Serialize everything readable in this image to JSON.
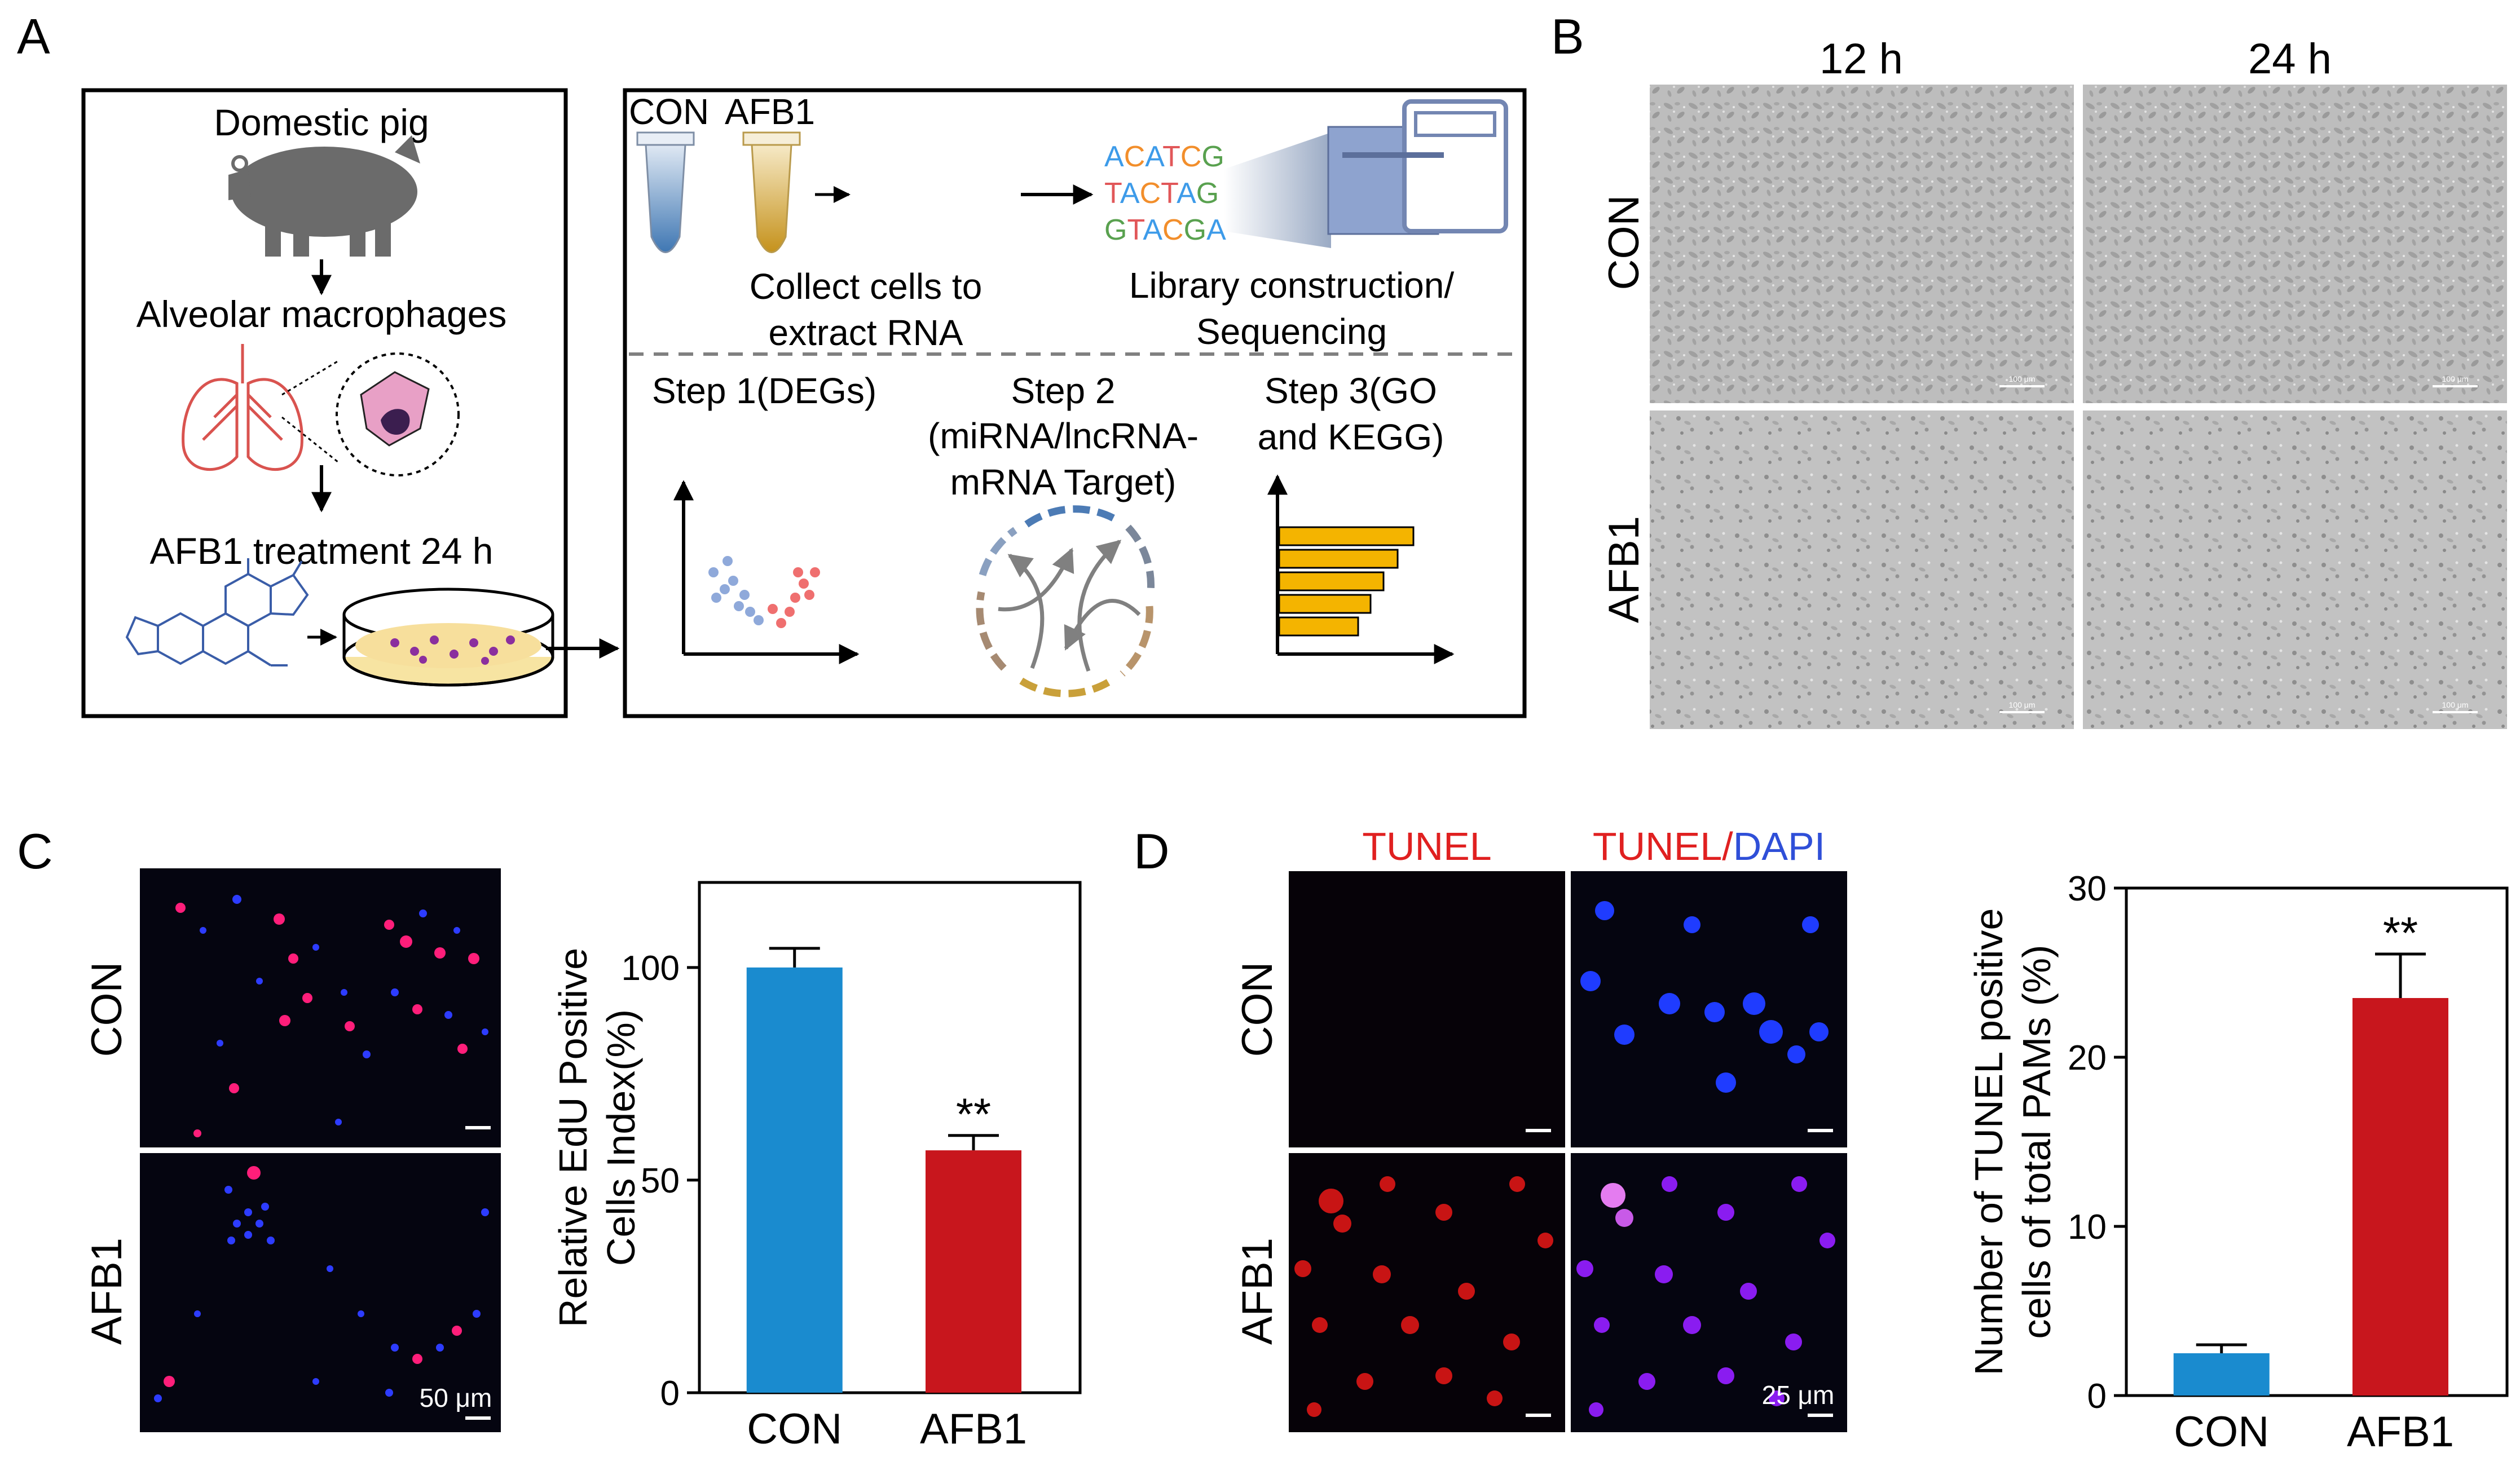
{
  "panel_labels": {
    "a": "A",
    "b": "B",
    "c": "C",
    "d": "D"
  },
  "panel_a": {
    "left_box": {
      "domestic_pig": "Domestic pig",
      "alveolar_macrophages": "Alveolar macrophages",
      "treatment": "AFB1 treatment 24 h"
    },
    "right_box": {
      "tube_con": "CON",
      "tube_afb1": "AFB1",
      "collect_line1": "Collect cells to",
      "collect_line2": "extract RNA",
      "seq_lines": [
        "ACATCG",
        "TACTAG",
        "GTACGA"
      ],
      "library_line1": "Library construction/",
      "library_line2": "Sequencing",
      "step1": "Step 1(DEGs)",
      "step2_line1": "Step 2",
      "step2_line2": "(miRNA/lncRNA-",
      "step2_line3": "mRNA Target)",
      "step3_line1": "Step 3(GO",
      "step3_line2": "and KEGG)"
    }
  },
  "panel_b": {
    "col_12h": "12 h",
    "col_24h": "24 h",
    "row_con": "CON",
    "row_afb1": "AFB1",
    "scale_label": "100 μm"
  },
  "panel_c": {
    "row_con": "CON",
    "row_afb1": "AFB1",
    "scale_label": "50 μm",
    "significance": "**"
  },
  "panel_d": {
    "col_tunel": "TUNEL",
    "col_tunel2": "TUNEL/",
    "col_dapi": "DAPI",
    "row_con": "CON",
    "row_afb1": "AFB1",
    "scale_label": "25 μm",
    "significance": "**"
  },
  "colors": {
    "con": "#1a8bcf",
    "afb1": "#c8161d",
    "tunel_red": "#e02020",
    "dapi_blue": "#2f4fd8"
  },
  "chart_data": [
    {
      "type": "bar",
      "panel": "C",
      "categories": [
        "CON",
        "AFB1"
      ],
      "values": [
        100.0,
        57.0
      ],
      "errors": [
        4.5,
        3.5
      ],
      "ylabel_line1": "Relative EdU Positive",
      "ylabel_line2": "Cells Index(%)",
      "ylim": [
        0,
        120
      ],
      "yticks": [
        0,
        50,
        100
      ],
      "ytick_labels": [
        "0",
        "50",
        "100"
      ]
    },
    {
      "type": "bar",
      "panel": "D",
      "categories": [
        "CON",
        "AFB1"
      ],
      "values": [
        2.5,
        23.5
      ],
      "errors": [
        0.5,
        2.6
      ],
      "ylabel_line1": "Number of TUNEL positive",
      "ylabel_line2": "cells of total PAMs (%)",
      "ylim": [
        0,
        30
      ],
      "yticks": [
        0,
        10,
        20,
        30
      ],
      "ytick_labels": [
        "0",
        "10",
        "20",
        "30"
      ]
    }
  ]
}
